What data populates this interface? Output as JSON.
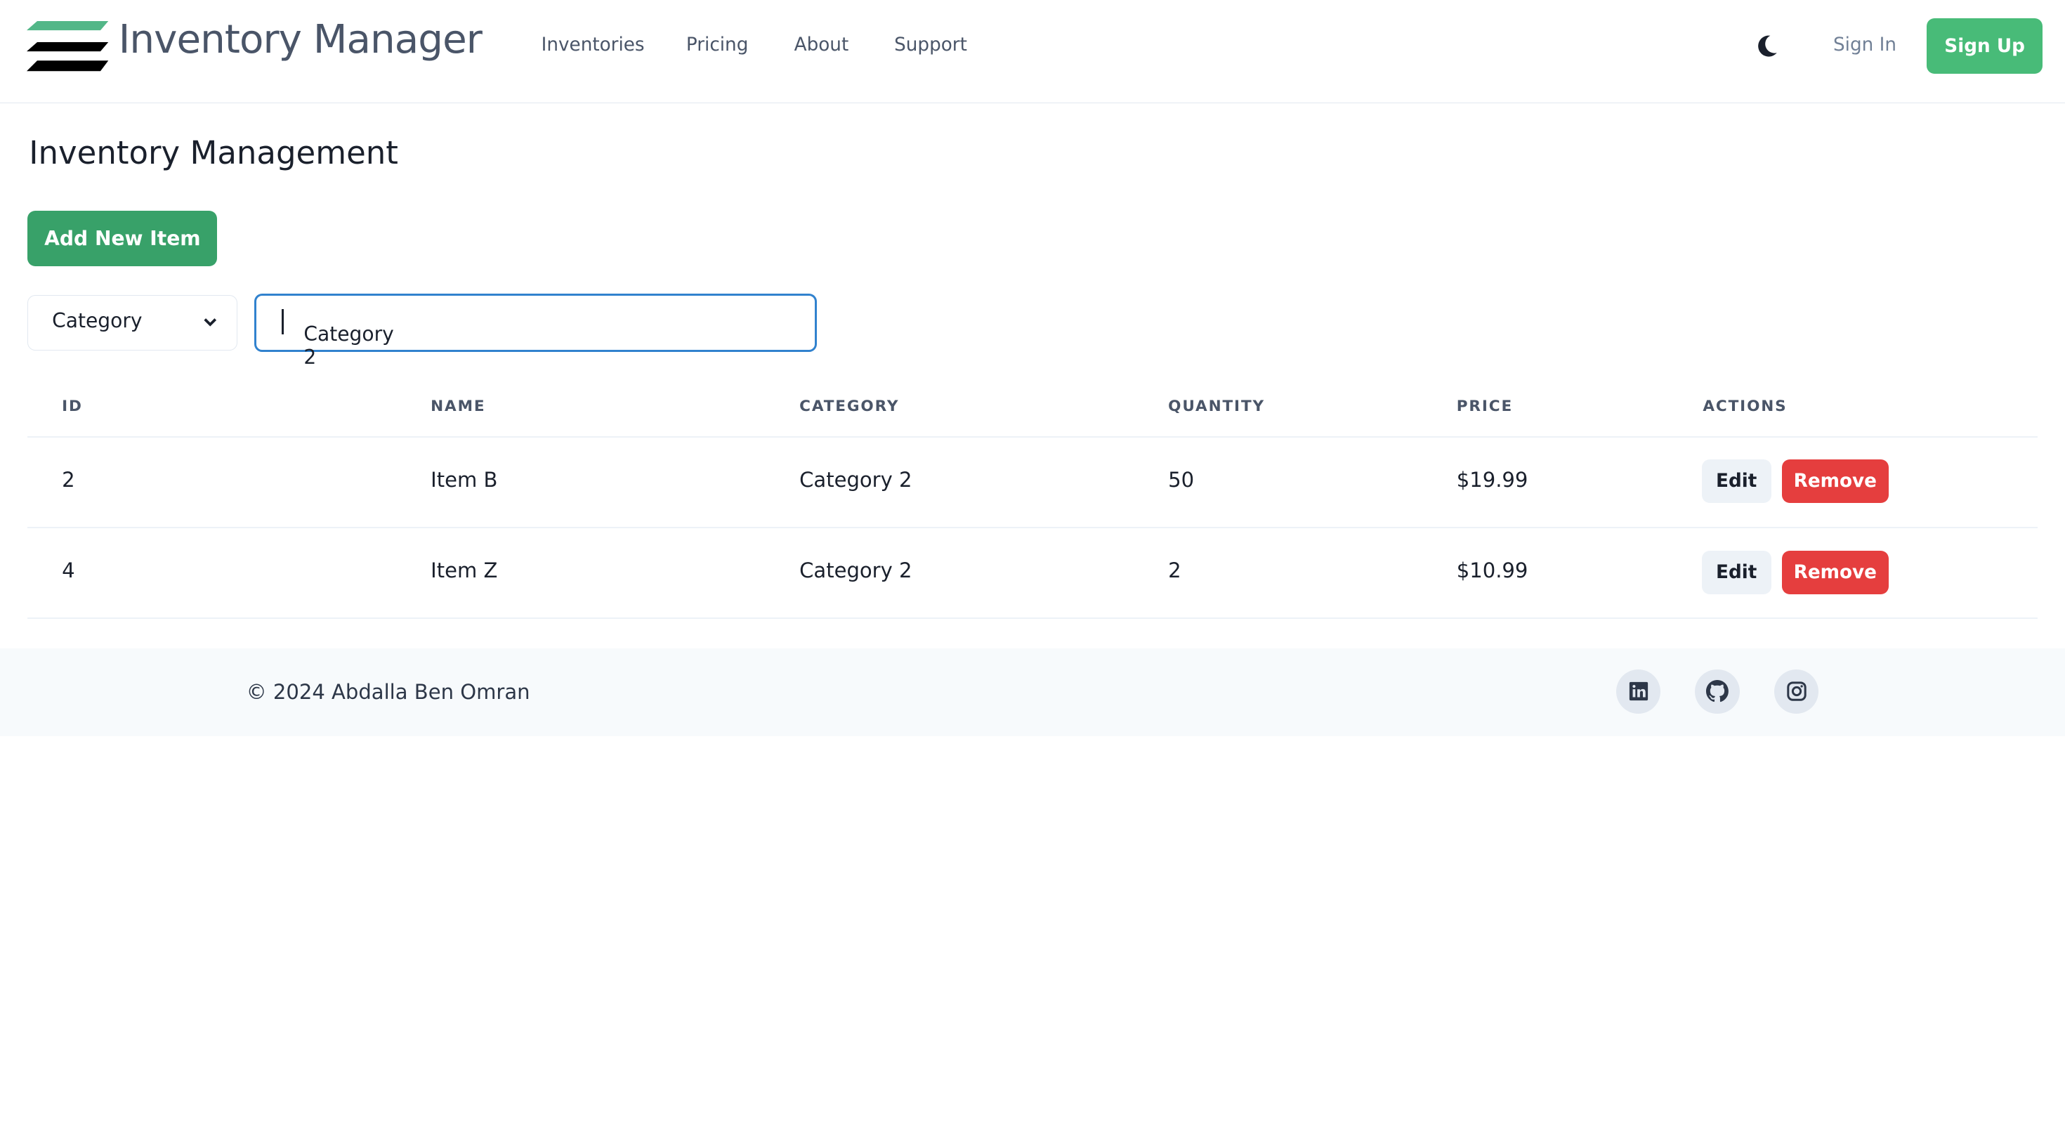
{
  "header": {
    "brand": "Inventory Manager",
    "nav": [
      "Inventories",
      "Pricing",
      "About",
      "Support"
    ],
    "theme_icon": "moon-icon",
    "sign_in": "Sign In",
    "sign_up": "Sign Up"
  },
  "main": {
    "title": "Inventory Management",
    "add_button": "Add New Item",
    "filter": {
      "selected": "Category",
      "value": "Category 2"
    },
    "table": {
      "columns": [
        "ID",
        "NAME",
        "CATEGORY",
        "QUANTITY",
        "PRICE",
        "ACTIONS"
      ],
      "rows": [
        {
          "id": "2",
          "name": "Item B",
          "category": "Category 2",
          "quantity": "50",
          "price": "$19.99",
          "edit": "Edit",
          "remove": "Remove"
        },
        {
          "id": "4",
          "name": "Item Z",
          "category": "Category 2",
          "quantity": "2",
          "price": "$10.99",
          "edit": "Edit",
          "remove": "Remove"
        }
      ]
    }
  },
  "footer": {
    "copyright": "© 2024 Abdalla Ben Omran",
    "social_icons": [
      "linkedin-icon",
      "github-icon",
      "instagram-icon"
    ]
  },
  "colors": {
    "brand_green": "#48bb78",
    "primary_green": "#38a169",
    "danger": "#e53e3e",
    "focus": "#3182ce"
  }
}
